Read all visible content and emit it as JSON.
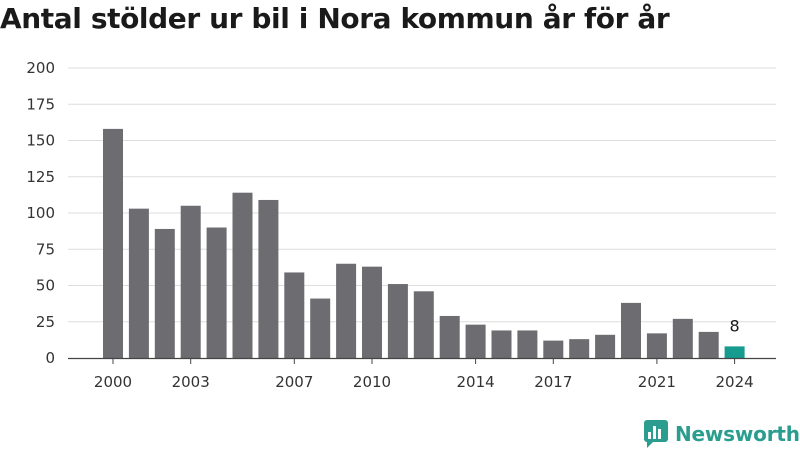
{
  "title": "Antal stölder ur bil i Nora kommun år för år",
  "brand": "Newsworthy",
  "colors": {
    "bar": "#6d6c71",
    "highlight": "#169b8f",
    "grid": "#dddddd",
    "axis": "#444444"
  },
  "chart_data": {
    "type": "bar",
    "title": "Antal stölder ur bil i Nora kommun år för år",
    "xlabel": "",
    "ylabel": "",
    "categories": [
      2000,
      2001,
      2002,
      2003,
      2004,
      2005,
      2006,
      2007,
      2008,
      2009,
      2010,
      2011,
      2012,
      2013,
      2014,
      2015,
      2016,
      2017,
      2018,
      2019,
      2020,
      2021,
      2022,
      2023,
      2024
    ],
    "values": [
      158,
      103,
      89,
      105,
      90,
      114,
      109,
      59,
      41,
      65,
      63,
      51,
      46,
      29,
      23,
      19,
      19,
      12,
      13,
      16,
      38,
      17,
      27,
      18,
      8
    ],
    "highlight_index": 24,
    "data_labels": [
      {
        "index": 24,
        "text": "8"
      }
    ],
    "xticks": [
      "2000",
      "2003",
      "2007",
      "2010",
      "2014",
      "2017",
      "2021",
      "2024"
    ],
    "yticks": [
      "0",
      "25",
      "50",
      "75",
      "100",
      "125",
      "150",
      "175",
      "200"
    ],
    "ylim": [
      0,
      200
    ],
    "grid": true,
    "legend": "none"
  }
}
